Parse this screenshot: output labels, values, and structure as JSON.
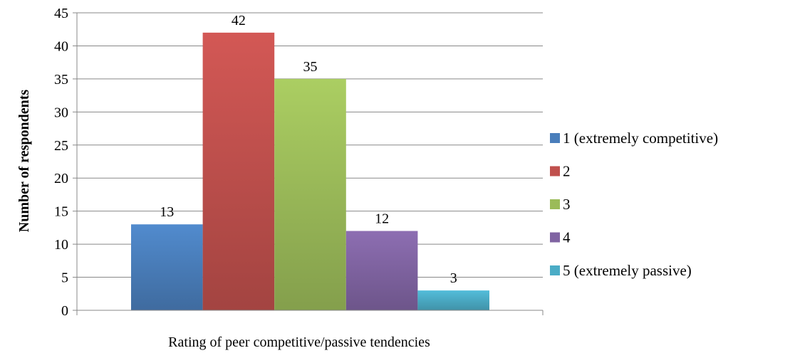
{
  "chart_data": {
    "type": "bar",
    "xlabel": "Rating of peer competitive/passive tendencies",
    "ylabel": "Number of respondents",
    "ylim": [
      0,
      45
    ],
    "ytick_step": 5,
    "grid": true,
    "legend_position": "right",
    "series": [
      {
        "name": "1 (extremely competitive)",
        "value": 13,
        "color": "#4a7ebb"
      },
      {
        "name": "2",
        "value": 42,
        "color": "#c0504d"
      },
      {
        "name": "3",
        "value": 35,
        "color": "#9bbb59"
      },
      {
        "name": "4",
        "value": 12,
        "color": "#8064a2"
      },
      {
        "name": "5 (extremely passive)",
        "value": 3,
        "color": "#4bacc6"
      }
    ]
  }
}
